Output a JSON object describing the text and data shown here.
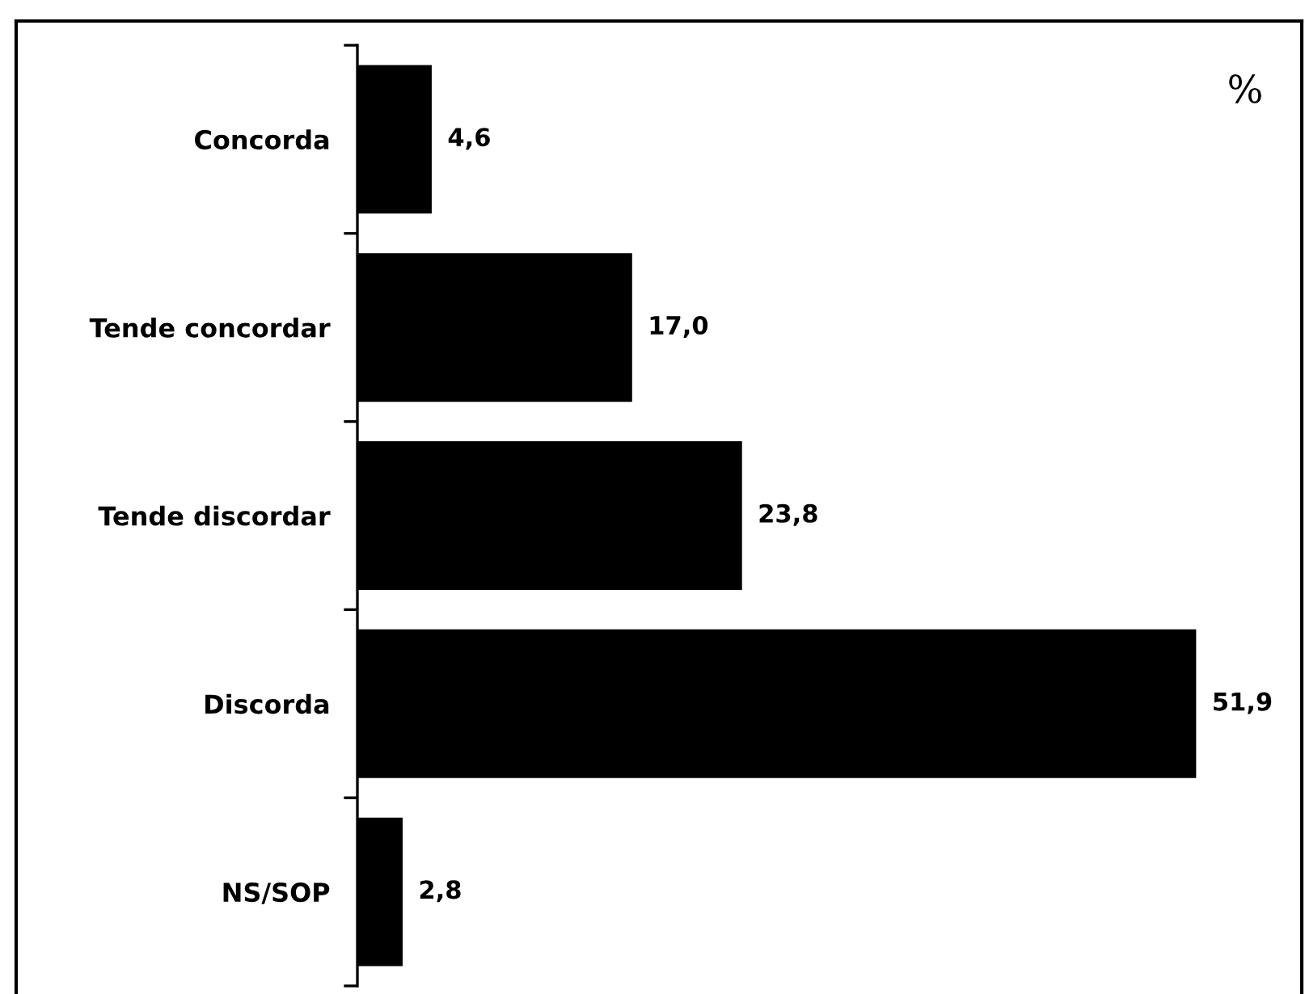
{
  "chart_data": {
    "type": "bar",
    "orientation": "horizontal",
    "categories": [
      "Concorda",
      "Tende concordar",
      "Tende discordar",
      "Discorda",
      "NS/SOP"
    ],
    "values": [
      4.6,
      17.0,
      23.8,
      51.9,
      2.8
    ],
    "color": "#000000",
    "value_labels": [
      "4,6",
      "17,0",
      "23,8",
      "51,9",
      "2,8"
    ],
    "annotations": [
      "%"
    ]
  }
}
